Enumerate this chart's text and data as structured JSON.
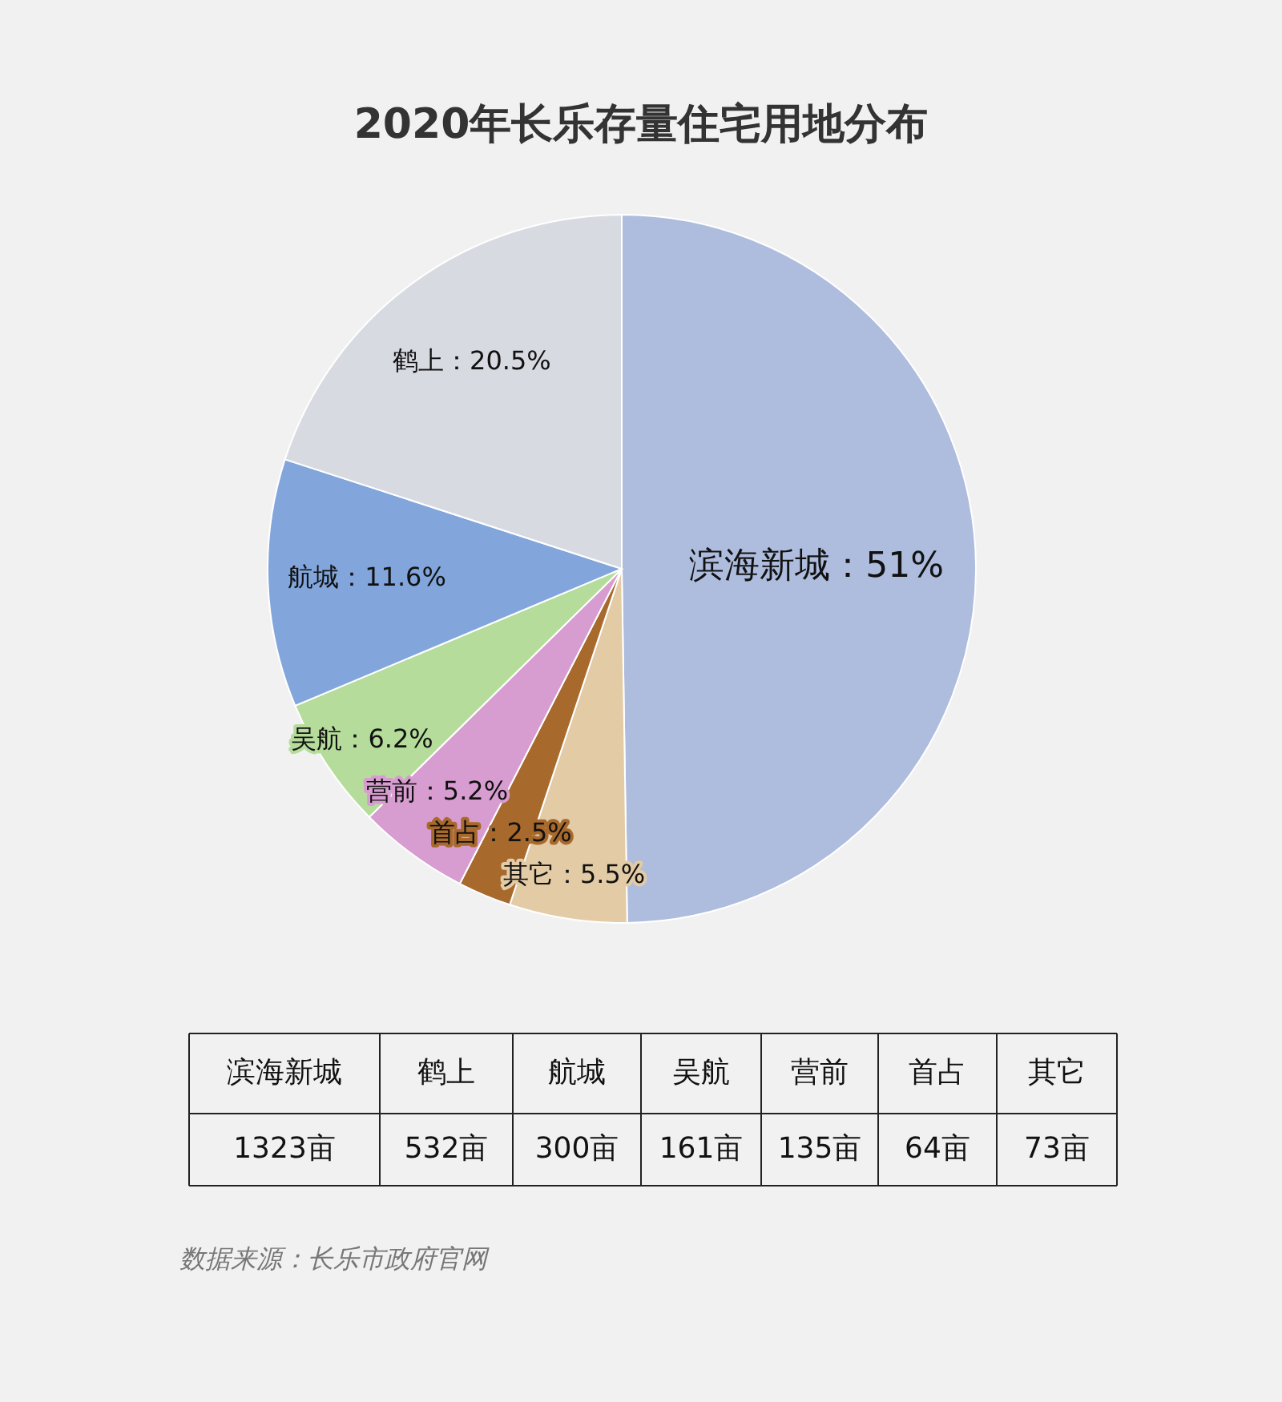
{
  "chart_data": [
    {
      "type": "pie",
      "title": "2020年长乐存量住宅用地分布",
      "categories": [
        "滨海新城",
        "其它",
        "首占",
        "营前",
        "吴航",
        "航城",
        "鹤上"
      ],
      "values": [
        51,
        5.5,
        2.5,
        5.2,
        6.2,
        11.6,
        20.5
      ],
      "colors": [
        "#aebcdd",
        "#e3cba6",
        "#a8692c",
        "#d89dd0",
        "#b6dc9c",
        "#82a6dc",
        "#d8dae2"
      ],
      "value_labels": [
        "：51%",
        "：5.5%",
        "：2.5%",
        "：5.2%",
        "：6.2%",
        "：11.6%",
        "：20.5%"
      ]
    },
    {
      "type": "other",
      "categories": [
        "滨海新城",
        "鹤上",
        "航城",
        "吴航",
        "营前",
        "首占",
        "其它"
      ],
      "values": [
        1323,
        532,
        300,
        161,
        135,
        64,
        73
      ],
      "value_labels": [
        "1323亩",
        "532亩",
        "300亩",
        "161亩",
        "135亩",
        "64亩",
        "73亩"
      ],
      "annotations": [
        "数据来源：长乐市政府官网"
      ]
    }
  ]
}
